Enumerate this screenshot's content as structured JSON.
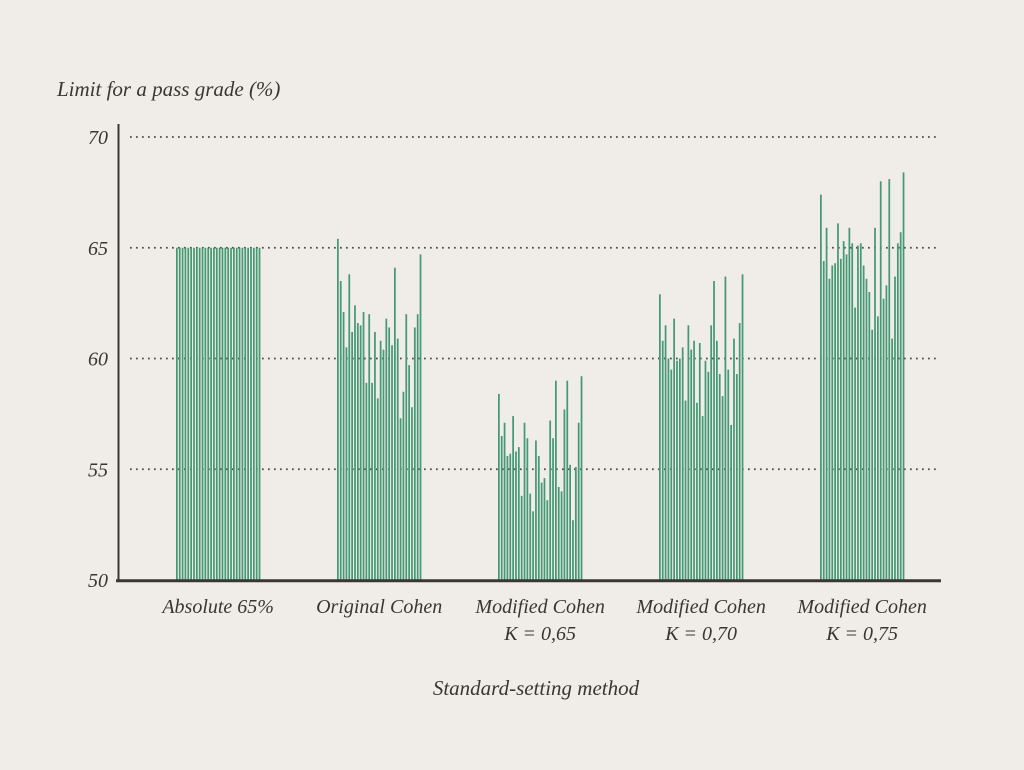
{
  "chart_data": {
    "type": "bar",
    "title": "",
    "ylabel": "Limit for a pass grade (%)",
    "xlabel": "Standard-setting method",
    "ylim": [
      50,
      70
    ],
    "yticks": [
      70,
      65,
      60,
      55,
      50
    ],
    "grid_yticks": [
      70,
      65,
      60,
      55
    ],
    "grid": "dotted-horizontal",
    "legend": "none",
    "bars_per_group": 30,
    "groups": [
      {
        "label_lines": [
          "Absolute 65%"
        ],
        "values": [
          65,
          65,
          65,
          65,
          65,
          65,
          65,
          65,
          65,
          65,
          65,
          65,
          65,
          65,
          65,
          65,
          65,
          65,
          65,
          65,
          65,
          65,
          65,
          65,
          65,
          65,
          65,
          65,
          65,
          65
        ]
      },
      {
        "label_lines": [
          "Original Cohen"
        ],
        "values": [
          65.4,
          63.5,
          62.1,
          60.5,
          63.8,
          61.2,
          62.4,
          61.6,
          61.5,
          62.1,
          58.9,
          62.0,
          58.9,
          61.2,
          58.2,
          60.8,
          60.4,
          61.8,
          61.4,
          60.6,
          64.1,
          60.9,
          57.3,
          58.5,
          62.0,
          59.7,
          57.8,
          61.4,
          62.0,
          64.7
        ]
      },
      {
        "label_lines": [
          "Modified Cohen",
          "K = 0,65"
        ],
        "values": [
          58.4,
          56.5,
          57.1,
          55.6,
          55.7,
          57.4,
          55.8,
          56.0,
          53.8,
          57.1,
          56.4,
          53.9,
          53.1,
          56.3,
          55.6,
          54.4,
          54.6,
          53.6,
          57.2,
          56.4,
          59.0,
          54.2,
          54.0,
          57.7,
          59.0,
          55.2,
          52.7,
          55.1,
          57.1,
          59.2
        ]
      },
      {
        "label_lines": [
          "Modified Cohen",
          "K = 0,70"
        ],
        "values": [
          62.9,
          60.8,
          61.5,
          60.0,
          59.5,
          61.8,
          59.9,
          60.0,
          60.5,
          58.1,
          61.5,
          60.4,
          60.8,
          58.0,
          60.7,
          57.4,
          59.9,
          59.4,
          61.5,
          63.5,
          60.8,
          59.3,
          58.3,
          63.7,
          59.5,
          57.0,
          60.9,
          59.3,
          61.6,
          63.8
        ]
      },
      {
        "label_lines": [
          "Modified Cohen",
          "K = 0,75"
        ],
        "values": [
          67.4,
          64.4,
          65.9,
          63.6,
          64.2,
          64.3,
          66.1,
          64.5,
          65.3,
          64.7,
          65.9,
          65.2,
          62.3,
          65.1,
          65.2,
          64.2,
          63.6,
          63.0,
          61.3,
          65.9,
          61.9,
          68.0,
          62.7,
          63.3,
          68.1,
          60.9,
          63.7,
          65.2,
          65.7,
          68.4
        ]
      }
    ],
    "colors": {
      "bar": "#459a74",
      "background": "#f0ece8",
      "text": "#3a3632",
      "grid": "#4d4843",
      "axis": "#3a3632"
    }
  }
}
